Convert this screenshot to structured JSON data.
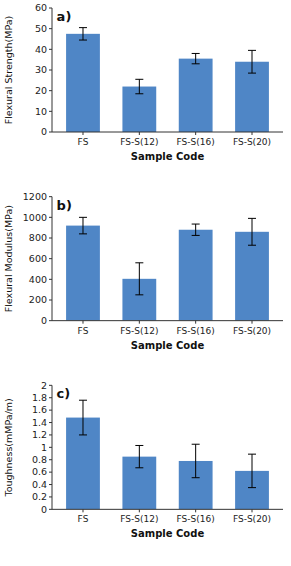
{
  "chart_data": [
    {
      "type": "bar",
      "annotations": [
        "a)"
      ],
      "categories": [
        "FS",
        "FS-S(12)",
        "FS-S(16)",
        "FS-S(20)"
      ],
      "values": [
        47.5,
        22.0,
        35.5,
        34.0
      ],
      "errors": [
        3.0,
        3.5,
        2.5,
        5.5
      ],
      "ylabel": "Flexural Strength(MPa)",
      "xlabel": "Sample Code",
      "color": "#4F86C6",
      "ylim": [
        0,
        60
      ],
      "yticks": [
        0,
        10,
        20,
        30,
        40,
        50,
        60
      ],
      "grid": false
    },
    {
      "type": "bar",
      "annotations": [
        "b)"
      ],
      "categories": [
        "FS",
        "FS-S(12)",
        "FS-S(16)",
        "FS-S(20)"
      ],
      "values": [
        920.0,
        405.0,
        880.0,
        860.0
      ],
      "errors": [
        80.0,
        155.0,
        55.0,
        130.0
      ],
      "ylabel": "Flexural Modulus(MPa)",
      "xlabel": "Sample Code",
      "color": "#4F86C6",
      "ylim": [
        0,
        1200
      ],
      "yticks": [
        0,
        200,
        400,
        600,
        800,
        1000,
        1200
      ],
      "grid": false
    },
    {
      "type": "bar",
      "annotations": [
        "c)"
      ],
      "categories": [
        "FS",
        "FS-S(12)",
        "FS-S(16)",
        "FS-S(20)"
      ],
      "values": [
        1.48,
        0.85,
        0.78,
        0.62
      ],
      "errors": [
        0.28,
        0.18,
        0.27,
        0.27
      ],
      "ylabel": "Toughness(mMPa/m)",
      "xlabel": "Sample Code",
      "color": "#4F86C6",
      "ylim": [
        0,
        2
      ],
      "yticks": [
        0,
        0.2,
        0.4,
        0.6,
        0.8,
        1,
        1.2,
        1.4,
        1.6,
        1.8,
        2
      ],
      "grid": false
    }
  ]
}
